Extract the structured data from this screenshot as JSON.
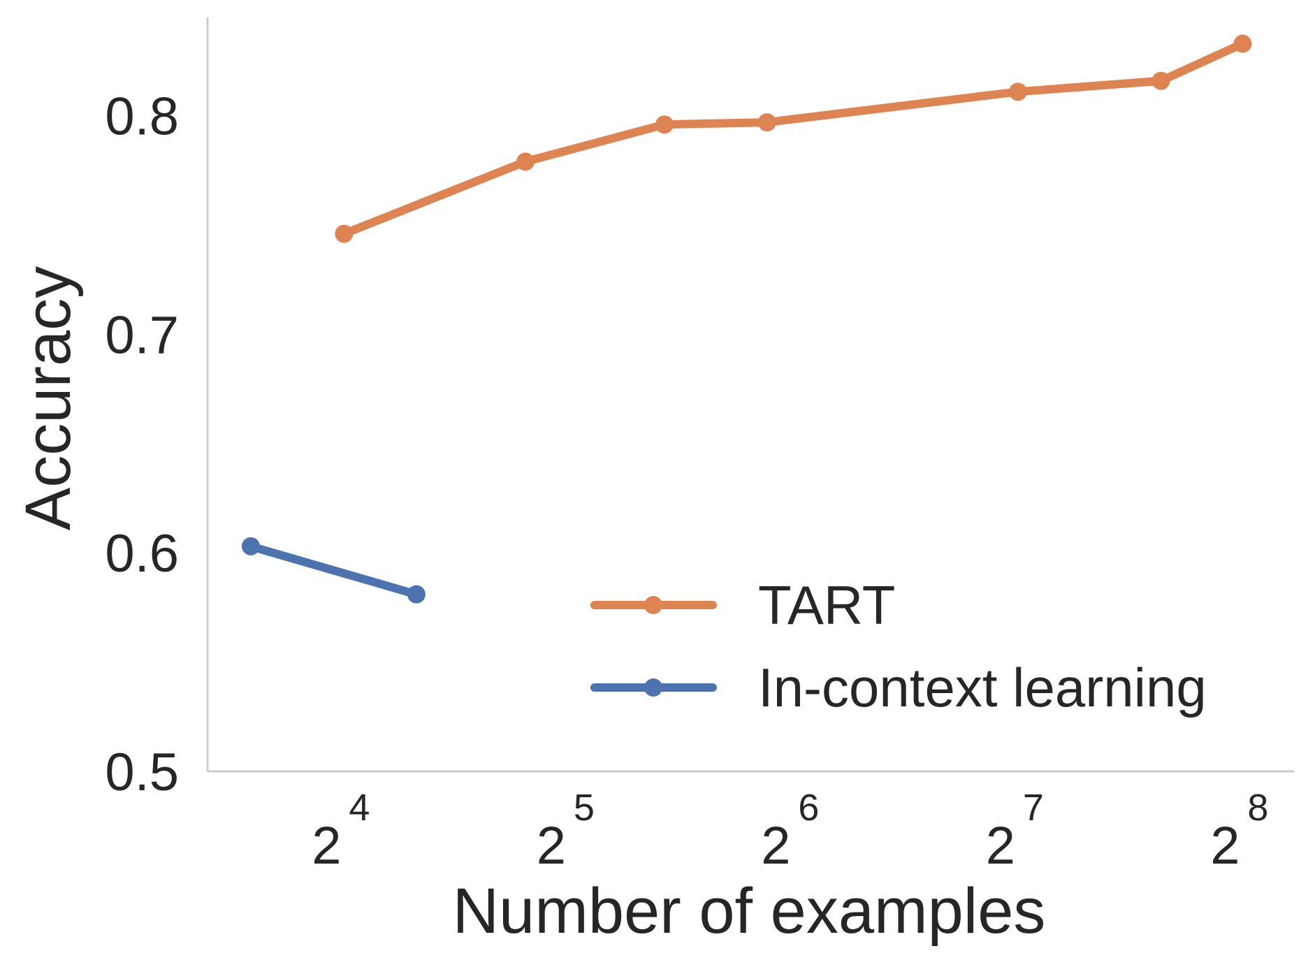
{
  "chart_data": {
    "type": "line",
    "xlabel": "Number of examples",
    "ylabel": "Accuracy",
    "x_scale": "log2",
    "xlim": [
      10.5,
      300
    ],
    "ylim": [
      0.5,
      0.845
    ],
    "x_ticks": [
      {
        "value": 16,
        "base": "2",
        "exp": "4"
      },
      {
        "value": 32,
        "base": "2",
        "exp": "5"
      },
      {
        "value": 64,
        "base": "2",
        "exp": "6"
      },
      {
        "value": 128,
        "base": "2",
        "exp": "7"
      },
      {
        "value": 256,
        "base": "2",
        "exp": "8"
      }
    ],
    "y_ticks": [
      {
        "value": 0.5,
        "label": "0.5"
      },
      {
        "value": 0.6,
        "label": "0.6"
      },
      {
        "value": 0.7,
        "label": "0.7"
      },
      {
        "value": 0.8,
        "label": "0.8"
      }
    ],
    "grid": false,
    "legend_position": "bottom-right",
    "series": [
      {
        "name": "TART",
        "color": "#dd8452",
        "x": [
          16,
          28,
          43,
          59,
          128,
          199,
          256
        ],
        "y": [
          0.746,
          0.779,
          0.796,
          0.797,
          0.811,
          0.816,
          0.833
        ]
      },
      {
        "name": "In-context learning",
        "color": "#4c72b0",
        "x": [
          12,
          20
        ],
        "y": [
          0.603,
          0.581
        ]
      }
    ]
  }
}
